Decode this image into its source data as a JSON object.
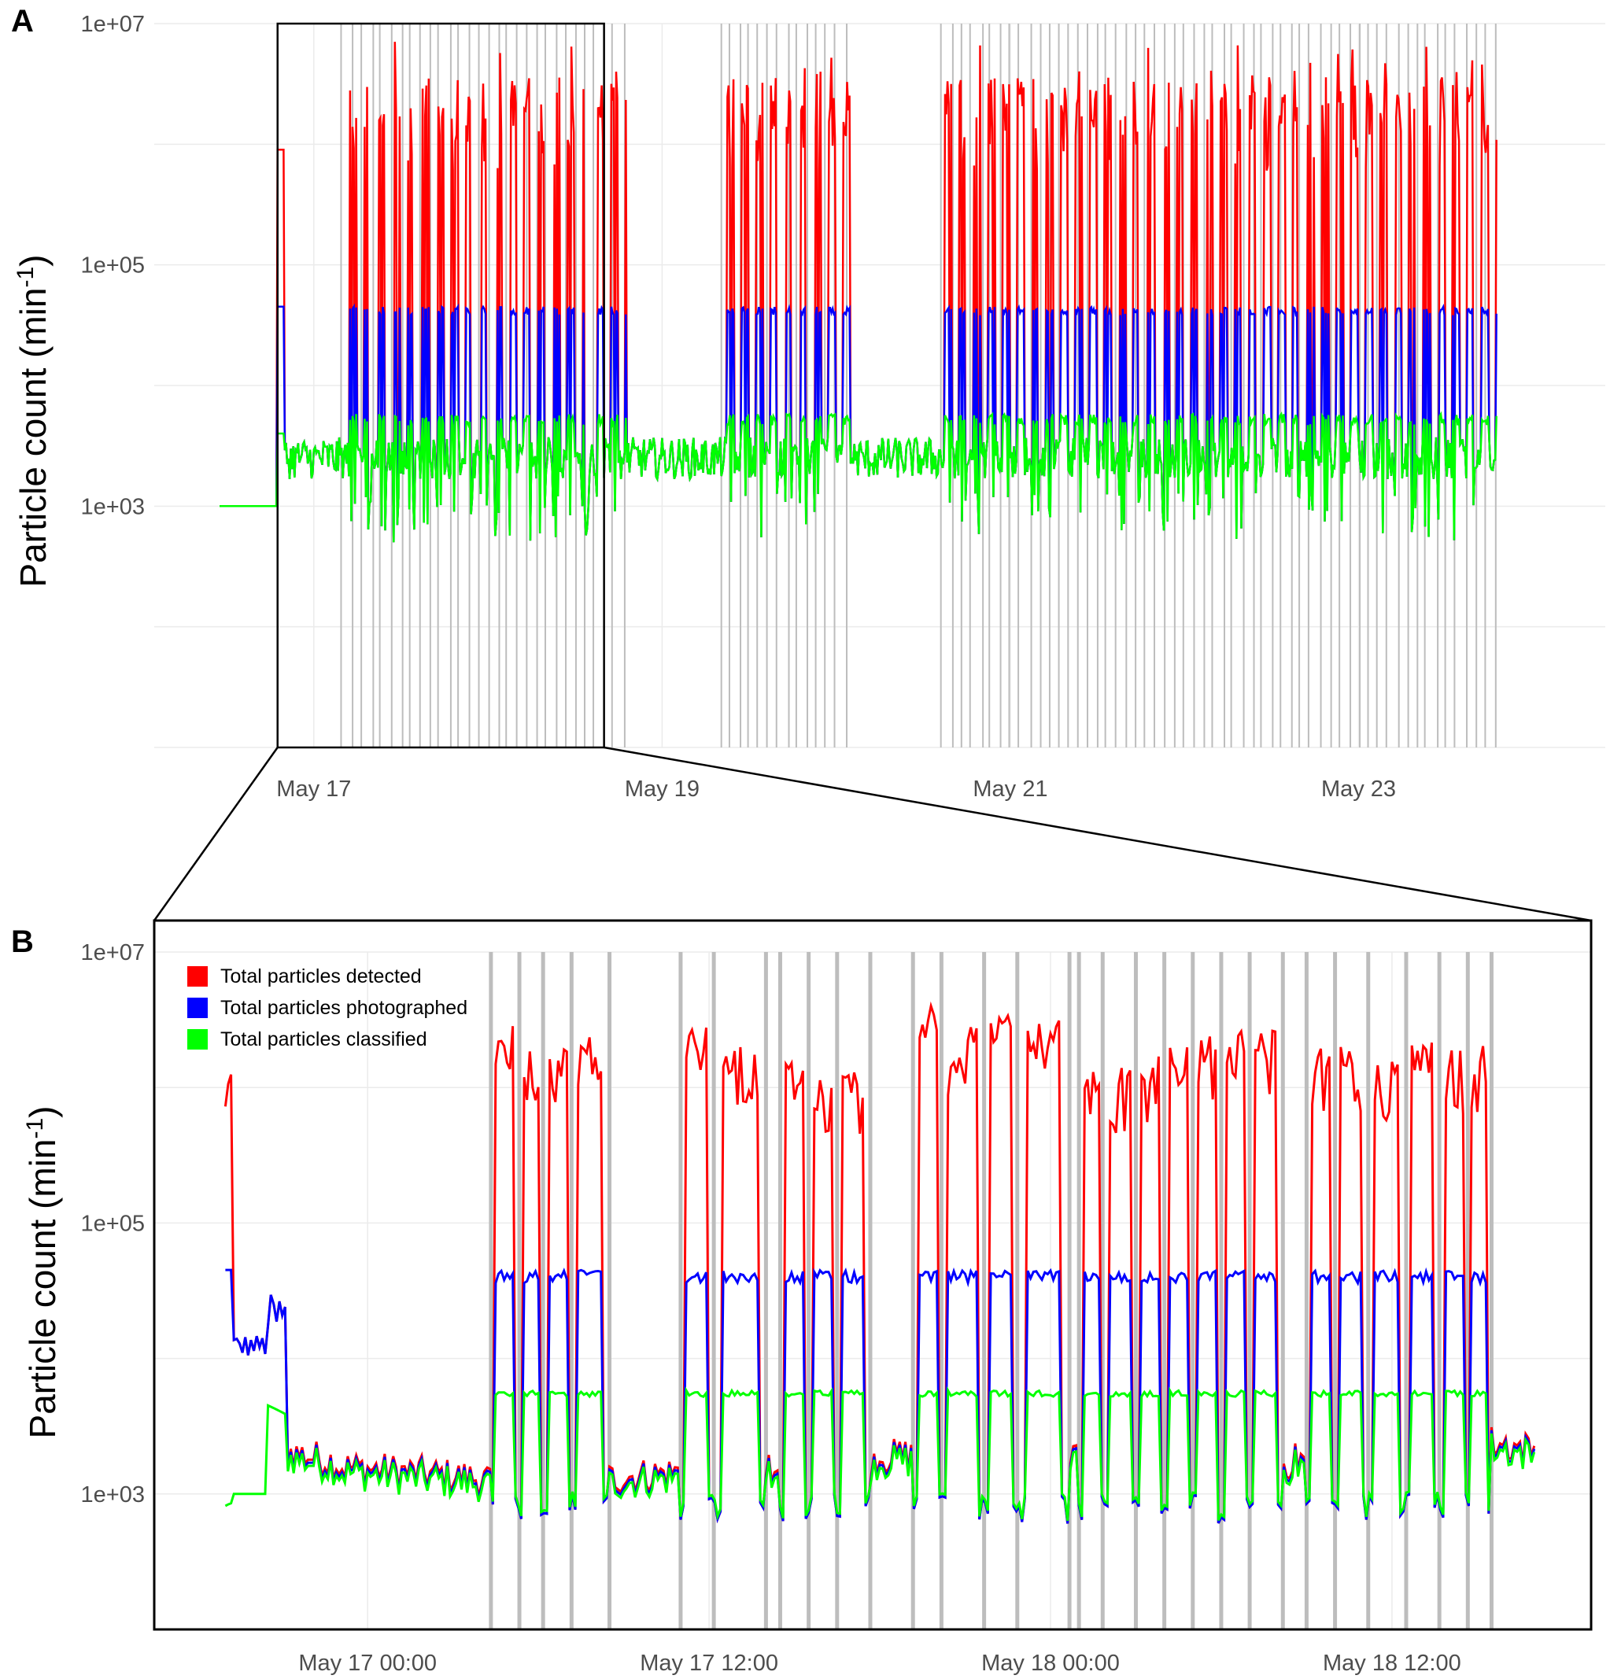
{
  "figure": {
    "panel_a_label": "A",
    "panel_b_label": "B"
  },
  "colors": {
    "detected": "#ff0000",
    "photographed": "#0000ff",
    "classified": "#00ff00",
    "event_line": "#bdbdbd",
    "grid": "#ebebeb"
  },
  "chart_data": [
    {
      "id": "A",
      "type": "line",
      "ylabel": "Particle count (min",
      "ylabel_sup": "-1",
      "y_scale": "log10",
      "ylim": [
        10,
        10000000
      ],
      "yticks": [
        {
          "value": 1000,
          "label": "1e+03"
        },
        {
          "value": 100000,
          "label": "1e+05"
        },
        {
          "value": 10000000,
          "label": "1e+07"
        }
      ],
      "xlim": [
        "2018-05-16 02:00",
        "2018-05-24 10:00"
      ],
      "xticks": [
        {
          "value": "2018-05-17 00:00",
          "label": "May 17"
        },
        {
          "value": "2018-05-19 00:00",
          "label": "May 19"
        },
        {
          "value": "2018-05-21 00:00",
          "label": "May 21"
        },
        {
          "value": "2018-05-23 00:00",
          "label": "May 23"
        }
      ],
      "grid": true,
      "zoom_window": [
        "2018-05-16 19:00",
        "2018-05-18 16:00"
      ],
      "data_span": [
        "2018-05-16 11:00",
        "2018-05-23 19:00"
      ],
      "series": [
        {
          "name": "Total particles detected",
          "color": "#ff0000",
          "baseline": 1000,
          "peak_range": [
            500000,
            8000000
          ]
        },
        {
          "name": "Total particles photographed",
          "color": "#0000ff",
          "baseline": 2000,
          "cap": 45000
        },
        {
          "name": "Total particles classified",
          "color": "#00ff00",
          "cap": 5800
        }
      ],
      "event_line_count": 120
    },
    {
      "id": "B",
      "type": "line",
      "ylabel": "Particle count (min",
      "ylabel_sup": "-1",
      "y_scale": "log10",
      "ylim": [
        100,
        10000000
      ],
      "yticks": [
        {
          "value": 1000,
          "label": "1e+03"
        },
        {
          "value": 100000,
          "label": "1e+05"
        },
        {
          "value": 10000000,
          "label": "1e+07"
        }
      ],
      "xlim": [
        "2018-05-16 16:30",
        "2018-05-18 19:00"
      ],
      "xticks": [
        {
          "value": "2018-05-17 00:00",
          "label": "May 17 00:00"
        },
        {
          "value": "2018-05-17 12:00",
          "label": "May 17 12:00"
        },
        {
          "value": "2018-05-18 00:00",
          "label": "May 18 00:00"
        },
        {
          "value": "2018-05-18 12:00",
          "label": "May 18 12:00"
        }
      ],
      "grid": true,
      "legend": {
        "position": "top-left",
        "entries": [
          {
            "label": "Total particles detected",
            "color": "#ff0000"
          },
          {
            "label": "Total particles photographed",
            "color": "#0000ff"
          },
          {
            "label": "Total particles classified",
            "color": "#00ff00"
          }
        ]
      },
      "initial_spike": {
        "time": "2018-05-16 20:00",
        "detected": 900000,
        "photographed": 45000,
        "classified": 1000
      },
      "sampling_events": [
        {
          "start": "2018-05-17 04:20",
          "end": "2018-05-17 05:20",
          "detected_peak": 2900000
        },
        {
          "start": "2018-05-17 05:20",
          "end": "2018-05-17 06:10",
          "detected_peak": 2200000
        },
        {
          "start": "2018-05-17 06:10",
          "end": "2018-05-17 07:10",
          "detected_peak": 2000000
        },
        {
          "start": "2018-05-17 07:10",
          "end": "2018-05-17 08:30",
          "detected_peak": 2500000
        },
        {
          "start": "2018-05-17 11:00",
          "end": "2018-05-17 12:10",
          "detected_peak": 2800000
        },
        {
          "start": "2018-05-17 12:10",
          "end": "2018-05-17 14:00",
          "detected_peak": 2200000
        },
        {
          "start": "2018-05-17 14:30",
          "end": "2018-05-17 15:30",
          "detected_peak": 1600000
        },
        {
          "start": "2018-05-17 15:30",
          "end": "2018-05-17 16:30",
          "detected_peak": 1200000
        },
        {
          "start": "2018-05-17 16:30",
          "end": "2018-05-17 17:40",
          "detected_peak": 1500000
        },
        {
          "start": "2018-05-17 19:10",
          "end": "2018-05-17 20:10",
          "detected_peak": 4500000
        },
        {
          "start": "2018-05-17 20:10",
          "end": "2018-05-17 21:40",
          "detected_peak": 2800000
        },
        {
          "start": "2018-05-17 21:40",
          "end": "2018-05-17 22:50",
          "detected_peak": 4000000
        },
        {
          "start": "2018-05-17 22:50",
          "end": "2018-05-18 00:40",
          "detected_peak": 3500000
        },
        {
          "start": "2018-05-18 01:00",
          "end": "2018-05-18 01:50",
          "detected_peak": 2000000
        },
        {
          "start": "2018-05-18 01:50",
          "end": "2018-05-18 03:00",
          "detected_peak": 1500000
        },
        {
          "start": "2018-05-18 03:00",
          "end": "2018-05-18 04:00",
          "detected_peak": 1800000
        },
        {
          "start": "2018-05-18 04:00",
          "end": "2018-05-18 05:00",
          "detected_peak": 2200000
        },
        {
          "start": "2018-05-18 05:00",
          "end": "2018-05-18 06:00",
          "detected_peak": 2500000
        },
        {
          "start": "2018-05-18 06:00",
          "end": "2018-05-18 07:00",
          "detected_peak": 2600000
        },
        {
          "start": "2018-05-18 07:00",
          "end": "2018-05-18 08:10",
          "detected_peak": 2700000
        },
        {
          "start": "2018-05-18 09:00",
          "end": "2018-05-18 10:00",
          "detected_peak": 2200000
        },
        {
          "start": "2018-05-18 10:00",
          "end": "2018-05-18 11:10",
          "detected_peak": 2100000
        },
        {
          "start": "2018-05-18 11:10",
          "end": "2018-05-18 12:30",
          "detected_peak": 1900000
        },
        {
          "start": "2018-05-18 12:30",
          "end": "2018-05-18 13:40",
          "detected_peak": 2200000
        },
        {
          "start": "2018-05-18 13:40",
          "end": "2018-05-18 14:40",
          "detected_peak": 2000000
        },
        {
          "start": "2018-05-18 14:40",
          "end": "2018-05-18 15:30",
          "detected_peak": 2100000
        }
      ],
      "event_lines": [
        "2018-05-17 04:20",
        "2018-05-17 05:20",
        "2018-05-17 06:10",
        "2018-05-17 07:10",
        "2018-05-17 08:30",
        "2018-05-17 11:00",
        "2018-05-17 12:10",
        "2018-05-17 14:00",
        "2018-05-17 14:30",
        "2018-05-17 15:30",
        "2018-05-17 16:30",
        "2018-05-17 17:40",
        "2018-05-17 19:10",
        "2018-05-17 20:10",
        "2018-05-17 21:40",
        "2018-05-17 22:50",
        "2018-05-18 00:40",
        "2018-05-18 01:00",
        "2018-05-18 01:50",
        "2018-05-18 03:00",
        "2018-05-18 04:00",
        "2018-05-18 05:00",
        "2018-05-18 06:00",
        "2018-05-18 07:00",
        "2018-05-18 08:10",
        "2018-05-18 09:00",
        "2018-05-18 10:00",
        "2018-05-18 11:10",
        "2018-05-18 12:30",
        "2018-05-18 13:40",
        "2018-05-18 14:40",
        "2018-05-18 15:30"
      ],
      "caps": {
        "photographed": 45000,
        "classified": 5800
      }
    }
  ]
}
